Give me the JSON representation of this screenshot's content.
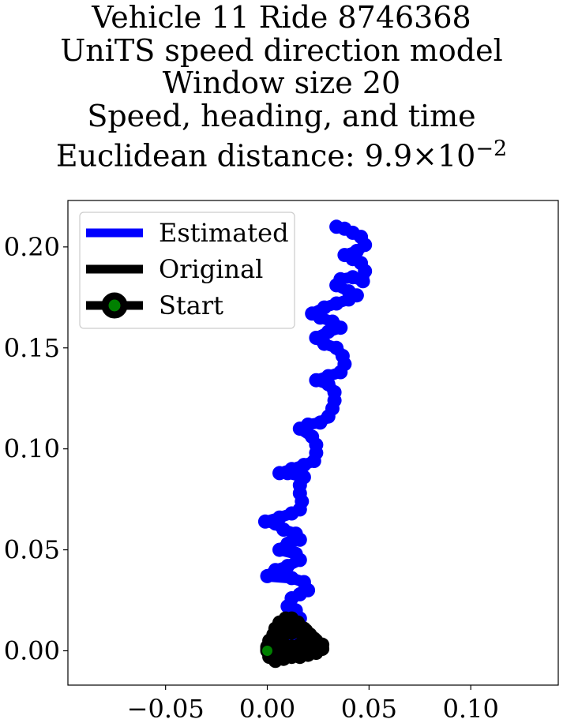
{
  "chart_data": {
    "type": "line",
    "title_lines": [
      "Vehicle 11 Ride 8746368",
      "UniTS speed direction model",
      "Window size 20",
      "Speed, heading, and time"
    ],
    "title_distance_prefix": "Euclidean distance: ",
    "title_distance_mantissa": "9.9",
    "title_distance_times": "×",
    "title_distance_base": "10",
    "title_distance_exponent": "−2",
    "xlabel": "",
    "ylabel": "",
    "xlim": [
      -0.098,
      0.143
    ],
    "ylim": [
      -0.017,
      0.223
    ],
    "xticks": [
      -0.05,
      0.0,
      0.05,
      0.1
    ],
    "xtick_labels": [
      "−0.05",
      "0.00",
      "0.05",
      "0.10"
    ],
    "yticks": [
      0.0,
      0.05,
      0.1,
      0.15,
      0.2
    ],
    "ytick_labels": [
      "0.00",
      "0.05",
      "0.10",
      "0.15",
      "0.20"
    ],
    "grid": false,
    "legend_position": "top-left",
    "series": [
      {
        "name": "Estimated",
        "color": "#0000ff",
        "points": [
          [
            0.009,
            0.0
          ],
          [
            0.012,
            0.006
          ],
          [
            0.014,
            0.01
          ],
          [
            0.016,
            0.016
          ],
          [
            0.014,
            0.02
          ],
          [
            0.01,
            0.022
          ],
          [
            0.012,
            0.026
          ],
          [
            0.016,
            0.028
          ],
          [
            0.02,
            0.03
          ],
          [
            0.018,
            0.034
          ],
          [
            0.012,
            0.036
          ],
          [
            0.0,
            0.037
          ],
          [
            0.004,
            0.04
          ],
          [
            0.01,
            0.042
          ],
          [
            0.016,
            0.045
          ],
          [
            0.014,
            0.048
          ],
          [
            0.006,
            0.05
          ],
          [
            0.01,
            0.053
          ],
          [
            0.016,
            0.055
          ],
          [
            0.014,
            0.058
          ],
          [
            0.008,
            0.06
          ],
          [
            0.004,
            0.063
          ],
          [
            -0.001,
            0.064
          ],
          [
            0.006,
            0.066
          ],
          [
            0.012,
            0.068
          ],
          [
            0.016,
            0.07
          ],
          [
            0.017,
            0.074
          ],
          [
            0.016,
            0.078
          ],
          [
            0.016,
            0.082
          ],
          [
            0.018,
            0.086
          ],
          [
            0.01,
            0.088
          ],
          [
            0.006,
            0.088
          ],
          [
            0.012,
            0.09
          ],
          [
            0.018,
            0.092
          ],
          [
            0.023,
            0.094
          ],
          [
            0.024,
            0.098
          ],
          [
            0.024,
            0.102
          ],
          [
            0.022,
            0.106
          ],
          [
            0.016,
            0.11
          ],
          [
            0.02,
            0.112
          ],
          [
            0.026,
            0.113
          ],
          [
            0.03,
            0.116
          ],
          [
            0.032,
            0.12
          ],
          [
            0.033,
            0.124
          ],
          [
            0.033,
            0.128
          ],
          [
            0.03,
            0.132
          ],
          [
            0.024,
            0.134
          ],
          [
            0.03,
            0.136
          ],
          [
            0.036,
            0.138
          ],
          [
            0.038,
            0.142
          ],
          [
            0.037,
            0.146
          ],
          [
            0.034,
            0.15
          ],
          [
            0.028,
            0.152
          ],
          [
            0.024,
            0.155
          ],
          [
            0.03,
            0.158
          ],
          [
            0.036,
            0.16
          ],
          [
            0.032,
            0.163
          ],
          [
            0.026,
            0.165
          ],
          [
            0.022,
            0.167
          ],
          [
            0.028,
            0.17
          ],
          [
            0.034,
            0.172
          ],
          [
            0.04,
            0.174
          ],
          [
            0.044,
            0.176
          ],
          [
            0.04,
            0.178
          ],
          [
            0.034,
            0.181
          ],
          [
            0.036,
            0.184
          ],
          [
            0.042,
            0.185
          ],
          [
            0.047,
            0.183
          ],
          [
            0.048,
            0.188
          ],
          [
            0.046,
            0.192
          ],
          [
            0.042,
            0.194
          ],
          [
            0.038,
            0.196
          ],
          [
            0.044,
            0.198
          ],
          [
            0.048,
            0.201
          ],
          [
            0.046,
            0.205
          ],
          [
            0.042,
            0.207
          ],
          [
            0.038,
            0.209
          ],
          [
            0.034,
            0.21
          ]
        ]
      },
      {
        "name": "Original",
        "color": "#000000",
        "points": [
          [
            0.0,
            0.0
          ],
          [
            0.001,
            -0.003
          ],
          [
            0.004,
            -0.005
          ],
          [
            0.008,
            -0.004
          ],
          [
            0.012,
            -0.003
          ],
          [
            0.016,
            -0.003
          ],
          [
            0.02,
            -0.002
          ],
          [
            0.024,
            -0.001
          ],
          [
            0.027,
            0.001
          ],
          [
            0.027,
            0.003
          ],
          [
            0.024,
            0.005
          ],
          [
            0.021,
            0.008
          ],
          [
            0.018,
            0.011
          ],
          [
            0.015,
            0.014
          ],
          [
            0.012,
            0.016
          ],
          [
            0.009,
            0.016
          ],
          [
            0.006,
            0.014
          ],
          [
            0.004,
            0.011
          ],
          [
            0.003,
            0.008
          ],
          [
            0.005,
            0.005
          ],
          [
            0.008,
            0.003
          ],
          [
            0.012,
            0.002
          ],
          [
            0.016,
            0.003
          ],
          [
            0.019,
            0.005
          ],
          [
            0.02,
            0.007
          ],
          [
            0.017,
            0.009
          ],
          [
            0.012,
            0.009
          ],
          [
            0.007,
            0.007
          ],
          [
            0.003,
            0.004
          ],
          [
            0.0,
            0.002
          ],
          [
            0.002,
            0.0
          ],
          [
            0.006,
            -0.001
          ],
          [
            0.011,
            0.0
          ],
          [
            0.016,
            0.001
          ],
          [
            0.021,
            0.002
          ],
          [
            0.025,
            0.003
          ],
          [
            0.023,
            0.006
          ],
          [
            0.019,
            0.01
          ],
          [
            0.015,
            0.012
          ],
          [
            0.011,
            0.013
          ],
          [
            0.007,
            0.011
          ],
          [
            0.004,
            0.008
          ],
          [
            0.001,
            0.005
          ],
          [
            0.0,
            0.001
          ]
        ]
      }
    ],
    "start": {
      "name": "Start",
      "x": 0.0,
      "y": 0.0,
      "marker_edge": "#000000",
      "marker_face": "#008000"
    }
  }
}
